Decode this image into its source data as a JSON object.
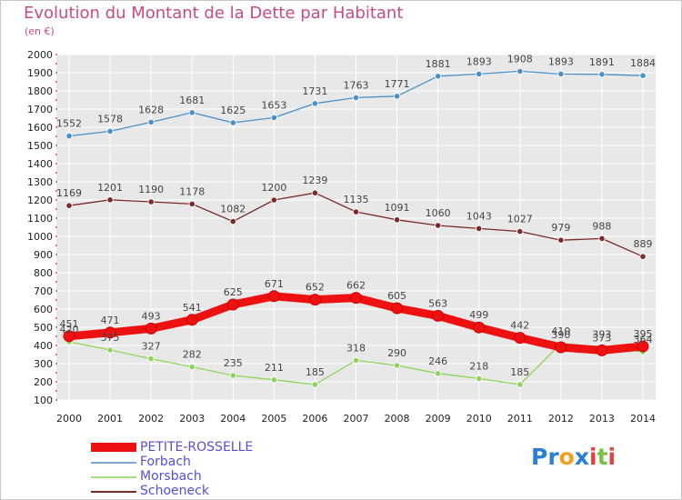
{
  "chart_data": {
    "type": "line",
    "title": "Evolution du Montant de la Dette par Habitant",
    "subtitle": "(en €)",
    "x": [
      "2000",
      "2001",
      "2002",
      "2003",
      "2004",
      "2005",
      "2006",
      "2007",
      "2008",
      "2009",
      "2010",
      "2011",
      "2012",
      "2013",
      "2014"
    ],
    "ylim": [
      100,
      2000
    ],
    "yticks": [
      100,
      200,
      300,
      400,
      500,
      600,
      700,
      800,
      900,
      1000,
      1100,
      1200,
      1300,
      1400,
      1500,
      1600,
      1700,
      1800,
      1900,
      2000
    ],
    "grid": true,
    "legend_position": "bottom-left",
    "series": [
      {
        "name": "PETITE-ROSSELLE",
        "color": "#ee1111",
        "values": [
          451,
          471,
          493,
          541,
          625,
          671,
          652,
          662,
          605,
          563,
          499,
          442,
          390,
          373,
          395
        ],
        "labels": [
          "451",
          "471",
          "493",
          "541",
          "625",
          "671",
          "652",
          "662",
          "605",
          "563",
          "499",
          "442",
          "390",
          "373",
          "395"
        ]
      },
      {
        "name": "Forbach",
        "color": "#4a90c8",
        "values": [
          1552,
          1578,
          1628,
          1681,
          1625,
          1653,
          1731,
          1763,
          1771,
          1881,
          1893,
          1908,
          1893,
          1891,
          1884
        ],
        "labels": [
          "1552",
          "1578",
          "1628",
          "1681",
          "1625",
          "1653",
          "1731",
          "1763",
          "1771",
          "1881",
          "1893",
          "1908",
          "1893",
          "1891",
          "1884"
        ]
      },
      {
        "name": "Morsbach",
        "color": "#8ed45a",
        "values": [
          420,
          375,
          327,
          282,
          235,
          211,
          185,
          318,
          290,
          246,
          218,
          185,
          410,
          393,
          364
        ],
        "labels": [
          "420",
          "375",
          "327",
          "282",
          "235",
          "211",
          "185",
          "318",
          "290",
          "246",
          "218",
          "185",
          "410",
          "393",
          "364"
        ]
      },
      {
        "name": "Schoeneck",
        "color": "#7a2a2a",
        "values": [
          1169,
          1201,
          1190,
          1178,
          1082,
          1200,
          1239,
          1135,
          1091,
          1060,
          1043,
          1027,
          979,
          988,
          889
        ],
        "labels": [
          "1169",
          "1201",
          "1190",
          "1178",
          "1082",
          "1200",
          "1239",
          "1135",
          "1091",
          "1060",
          "1043",
          "1027",
          "979",
          "988",
          "889"
        ]
      }
    ]
  },
  "legend": {
    "items": [
      {
        "label": "PETITE-ROSSELLE",
        "color": "#ee1111",
        "weight": "thick"
      },
      {
        "label": "Forbach",
        "color": "#7aa7d6",
        "weight": "thin"
      },
      {
        "label": "Morsbach",
        "color": "#a8e07c",
        "weight": "thin"
      },
      {
        "label": "Schoeneck",
        "color": "#7a2a2a",
        "weight": "thin"
      }
    ]
  },
  "brand": {
    "letters": [
      {
        "ch": "P",
        "color": "#2a7fd4"
      },
      {
        "ch": "r",
        "color": "#2a7fd4"
      },
      {
        "ch": "o",
        "color": "#f2a020"
      },
      {
        "ch": "x",
        "color": "#2a7fd4"
      },
      {
        "ch": "i",
        "color": "#e84040"
      },
      {
        "ch": "t",
        "color": "#7cc242"
      },
      {
        "ch": "i",
        "color": "#e84040"
      }
    ]
  }
}
